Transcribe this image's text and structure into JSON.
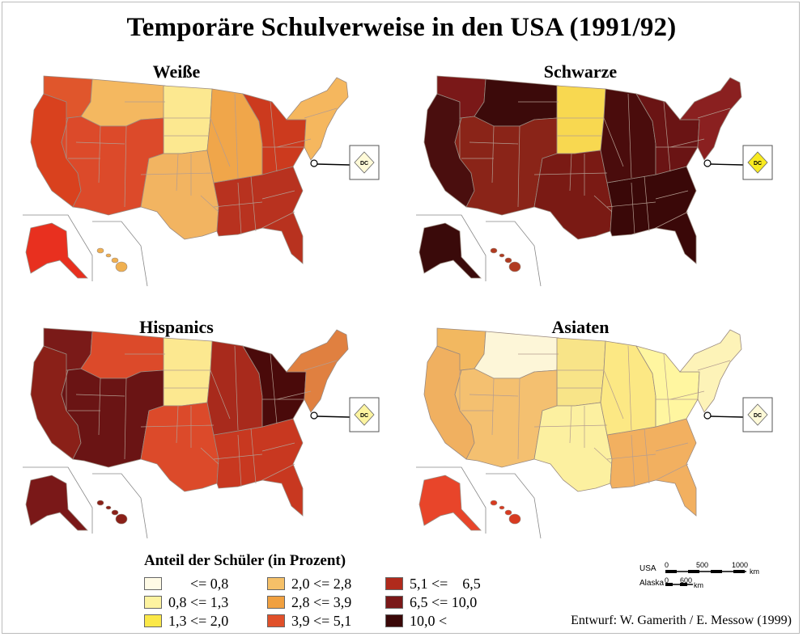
{
  "title": "Temporäre Schulverweise in den USA (1991/92)",
  "maps": [
    {
      "key": "weisse",
      "title": "Weiße",
      "fills": {
        "west": "#d9411e",
        "northwest": "#e0562c",
        "mountain": "#f4b860",
        "plains": "#fce890",
        "southwest": "#dc4a2a",
        "south": "#f2b461",
        "southeast": "#b8321f",
        "midwest": "#f0a64a",
        "greatlakes": "#cc3a1e",
        "northeast": "#f5b75e",
        "alaska": "#e8301f",
        "hawaii": "#f0b050"
      }
    },
    {
      "key": "schwarze",
      "title": "Schwarze",
      "fills": {
        "west": "#4a0e0e",
        "northwest": "#7a1818",
        "mountain": "#3c0a0a",
        "plains": "#f8d850",
        "southwest": "#8a2418",
        "south": "#7a1a14",
        "southeast": "#3a0808",
        "midwest": "#4a0c0c",
        "greatlakes": "#6a1414",
        "northeast": "#8a2020",
        "alaska": "#3a0a0a",
        "hawaii": "#b03a20"
      }
    },
    {
      "key": "hispanics",
      "title": "Hispanics",
      "fills": {
        "west": "#8a2018",
        "northwest": "#7a1a18",
        "mountain": "#dc4a2a",
        "plains": "#fce890",
        "southwest": "#6a1414",
        "south": "#dc4a2a",
        "southeast": "#c83820",
        "midwest": "#a82a1c",
        "greatlakes": "#4a0a0a",
        "northeast": "#e08040",
        "alaska": "#7a1818",
        "hawaii": "#8a2018"
      }
    },
    {
      "key": "asiaten",
      "title": "Asiaten",
      "fills": {
        "west": "#f0b060",
        "northwest": "#f2b860",
        "mountain": "#fdf6d8",
        "plains": "#f8e488",
        "southwest": "#f4c070",
        "south": "#fcf0a0",
        "southeast": "#f2b060",
        "midwest": "#fce884",
        "greatlakes": "#fff6a0",
        "northeast": "#fdf3b8",
        "alaska": "#e8452a",
        "hawaii": "#d83a20"
      }
    }
  ],
  "dc_label": "DC",
  "dc_fills": {
    "weisse": "#fffad8",
    "schwarze": "#f8ea20",
    "hispanics": "#fcf4a0",
    "asiaten": "#fffad8"
  },
  "legend": {
    "title": "Anteil der Schüler (in Prozent)",
    "items": [
      {
        "label": "      <= 0,8",
        "color": "#fffbe6"
      },
      {
        "label": "0,8 <= 1,3",
        "color": "#fdf3a0"
      },
      {
        "label": "1,3 <= 2,0",
        "color": "#fbe848"
      },
      {
        "label": "2,0 <= 2,8",
        "color": "#f5c068"
      },
      {
        "label": "2,8 <= 3,9",
        "color": "#f0a040"
      },
      {
        "label": "3,9 <= 5,1",
        "color": "#e0502a"
      },
      {
        "label": "5,1 <=    6,5",
        "color": "#b02a1c"
      },
      {
        "label": "6,5 <= 10,0",
        "color": "#7a1818"
      },
      {
        "label": "10,0 <",
        "color": "#3a0808"
      }
    ]
  },
  "scale": {
    "usa_label": "USA",
    "usa_ticks": [
      "0",
      "500",
      "1000"
    ],
    "usa_unit": "km",
    "alaska_label": "Alaska",
    "alaska_ticks": [
      "0",
      "600"
    ],
    "alaska_unit": "km"
  },
  "credit": "Entwurf: W. Gamerith / E. Messow (1999)"
}
